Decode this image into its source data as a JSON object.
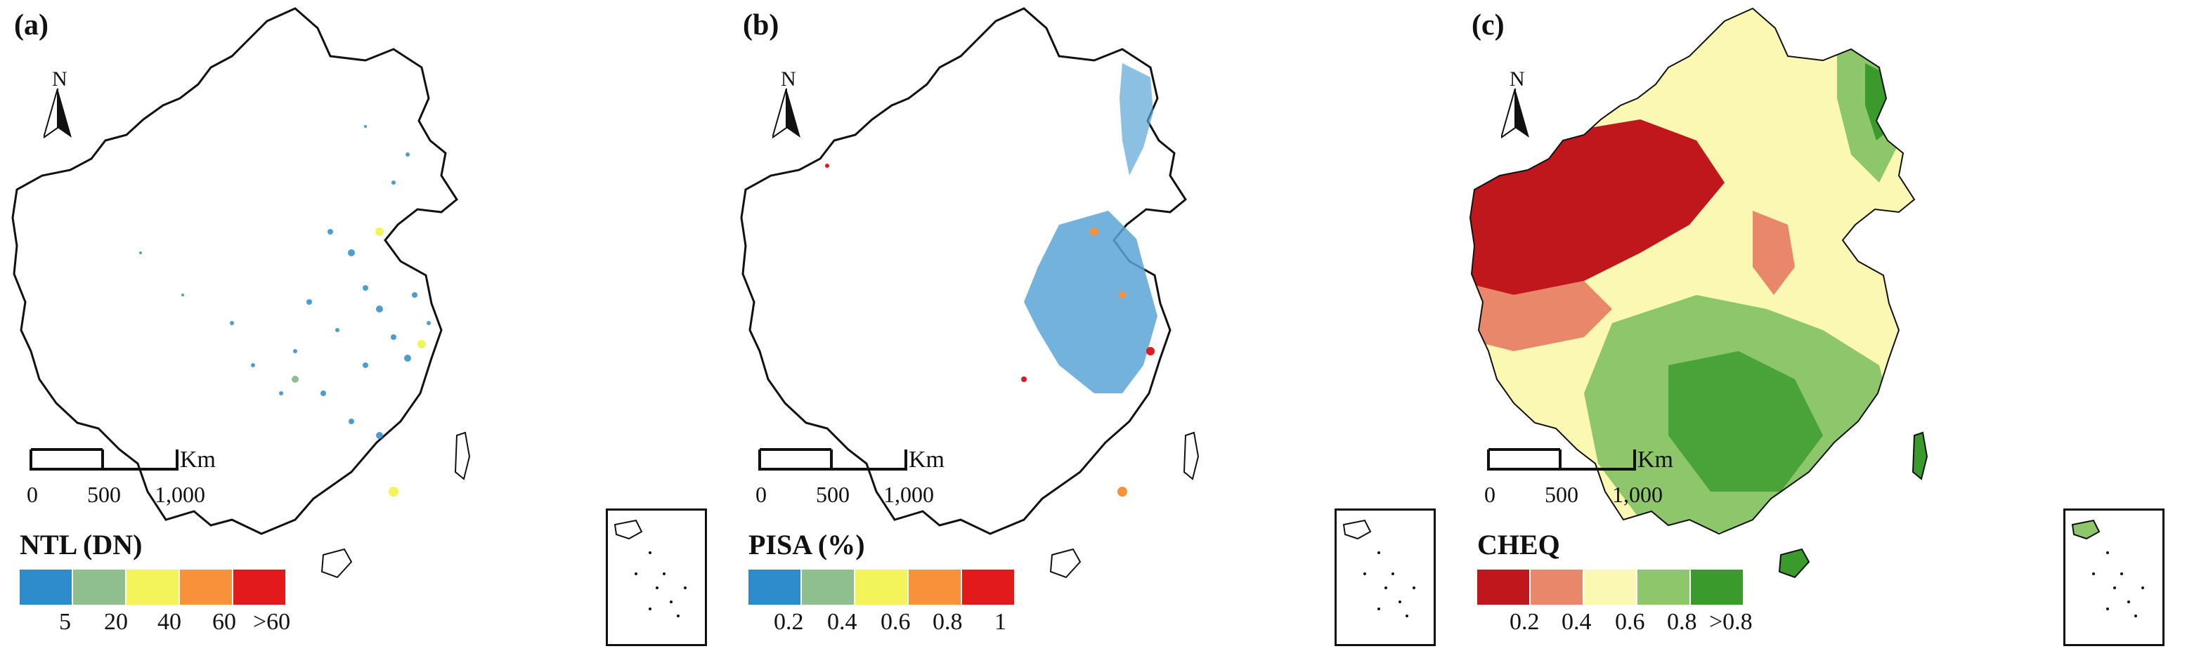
{
  "panels": [
    {
      "letter": "(a)",
      "legend_title": "NTL (DN)",
      "legend_colors": [
        "#2e8ccc",
        "#8fbf8f",
        "#f3f35a",
        "#f7923a",
        "#e31a1c"
      ],
      "legend_labels": [
        "5",
        "20",
        "40",
        "60",
        ">60"
      ],
      "fill": "sparse-blue"
    },
    {
      "letter": "(b)",
      "legend_title": "PISA (%)",
      "legend_colors": [
        "#2e8ccc",
        "#8fbf8f",
        "#f3f35a",
        "#f7923a",
        "#e31a1c"
      ],
      "legend_labels": [
        "0.2",
        "0.4",
        "0.6",
        "0.8",
        "1"
      ],
      "fill": "eastern-blue"
    },
    {
      "letter": "(c)",
      "legend_title": "CHEQ",
      "legend_colors": [
        "#c0171c",
        "#e8876a",
        "#fbf8b4",
        "#8ec66b",
        "#3a9a2c"
      ],
      "legend_labels": [
        "0.2",
        "0.4",
        "0.6",
        "0.8",
        ">0.8"
      ],
      "fill": "quality-gradient"
    }
  ],
  "north_label": "N",
  "scalebar": {
    "unit": "Km",
    "labels": [
      "0",
      "500",
      "1,000"
    ]
  }
}
